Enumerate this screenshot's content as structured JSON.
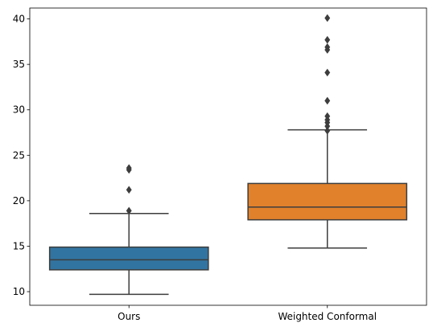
{
  "chart_data": {
    "type": "box",
    "title": "",
    "xlabel": "",
    "ylabel": "",
    "categories": [
      "Ours",
      "Weighted Conformal"
    ],
    "colors": [
      "#3274A1",
      "#E1812C"
    ],
    "ylim": [
      8.5,
      41.2
    ],
    "yticks": [
      10,
      15,
      20,
      25,
      30,
      35,
      40
    ],
    "grid": false,
    "legend": "none",
    "boxes": [
      {
        "category": "Ours",
        "whisker_low": 9.7,
        "q1": 12.4,
        "median": 13.5,
        "q3": 14.9,
        "whisker_high": 18.6,
        "outliers": [
          18.9,
          21.2,
          23.4,
          23.6
        ]
      },
      {
        "category": "Weighted Conformal",
        "whisker_low": 14.8,
        "q1": 17.9,
        "median": 19.3,
        "q3": 21.9,
        "whisker_high": 27.8,
        "outliers": [
          27.7,
          28.2,
          28.6,
          28.9,
          29.3,
          31.0,
          34.1,
          36.6,
          36.9,
          37.7,
          40.1
        ]
      }
    ]
  }
}
